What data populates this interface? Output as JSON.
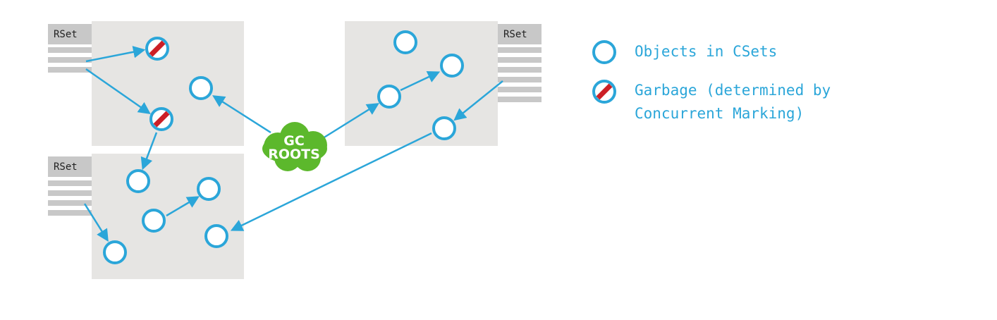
{
  "colors": {
    "region_fill": "#e6e5e3",
    "rset_header": "#c8c8c8",
    "rset_lines": "#c8c8c8",
    "object_stroke": "#2ba6d9",
    "arrow": "#2ba6d9",
    "garbage_slash": "#cc1f26",
    "roots_cloud": "#5cb82c",
    "legend_text": "#2ba6d9"
  },
  "regions": [
    {
      "id": "top-left",
      "rset_label": "RSet"
    },
    {
      "id": "bottom-left",
      "rset_label": "RSet"
    },
    {
      "id": "top-right",
      "rset_label": "RSet"
    }
  ],
  "gc_roots": {
    "line1": "GC",
    "line2": "ROOTS"
  },
  "legend": {
    "objects_label": "Objects in CSets",
    "garbage_label_line1": "Garbage (determined by",
    "garbage_label_line2": "Concurrent Marking)"
  }
}
